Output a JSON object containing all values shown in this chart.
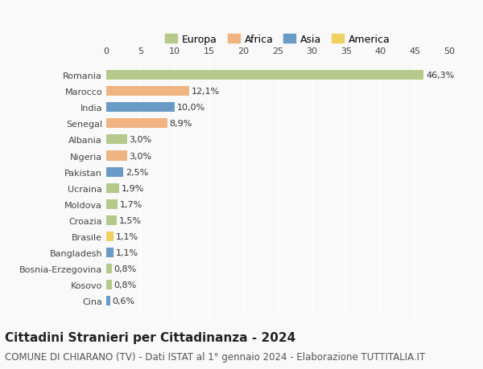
{
  "countries": [
    "Romania",
    "Marocco",
    "India",
    "Senegal",
    "Albania",
    "Nigeria",
    "Pakistan",
    "Ucraina",
    "Moldova",
    "Croazia",
    "Brasile",
    "Bangladesh",
    "Bosnia-Erzegovina",
    "Kosovo",
    "Cina"
  ],
  "values": [
    46.3,
    12.1,
    10.0,
    8.9,
    3.0,
    3.0,
    2.5,
    1.9,
    1.7,
    1.5,
    1.1,
    1.1,
    0.8,
    0.8,
    0.6
  ],
  "labels": [
    "46,3%",
    "12,1%",
    "10,0%",
    "8,9%",
    "3,0%",
    "3,0%",
    "2,5%",
    "1,9%",
    "1,7%",
    "1,5%",
    "1,1%",
    "1,1%",
    "0,8%",
    "0,8%",
    "0,6%"
  ],
  "continents": [
    "Europa",
    "Africa",
    "Asia",
    "Africa",
    "Europa",
    "Africa",
    "Asia",
    "Europa",
    "Europa",
    "Europa",
    "America",
    "Asia",
    "Europa",
    "Europa",
    "Asia"
  ],
  "continent_colors": {
    "Europa": "#b5c98a",
    "Africa": "#f0b482",
    "Asia": "#6a9bc7",
    "America": "#f0d060"
  },
  "legend_order": [
    "Europa",
    "Africa",
    "Asia",
    "America"
  ],
  "title": "Cittadini Stranieri per Cittadinanza - 2024",
  "subtitle": "COMUNE DI CHIARANO (TV) - Dati ISTAT al 1° gennaio 2024 - Elaborazione TUTTITALIA.IT",
  "xlim": [
    0,
    50
  ],
  "xticks": [
    0,
    5,
    10,
    15,
    20,
    25,
    30,
    35,
    40,
    45,
    50
  ],
  "background_color": "#f9f9f9",
  "grid_color": "#ffffff",
  "bar_height": 0.6,
  "title_fontsize": 11,
  "subtitle_fontsize": 8.5,
  "label_fontsize": 8,
  "tick_fontsize": 8,
  "legend_fontsize": 9
}
